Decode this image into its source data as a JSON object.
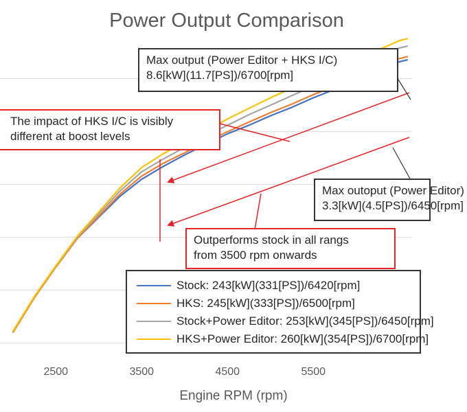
{
  "chart_data": {
    "type": "line",
    "title": "Power Output Comparison",
    "xlabel": "Engine RPM (rpm)",
    "ylabel": "",
    "xlim": [
      1850,
      6650
    ],
    "ylim": [
      -8,
      292
    ],
    "x_ticks": [
      "2500",
      "3500",
      "4500",
      "5500"
    ],
    "x_tick_values": [
      2500,
      3500,
      4500,
      5500
    ],
    "grid": true,
    "legend_position": "bottom-right",
    "series": [
      {
        "name": "Stock: 243[kW](331[PS])/6420[rpm]",
        "color": "#4472c4",
        "x": [
          2000,
          2250,
          2500,
          2750,
          3000,
          3250,
          3500,
          3750,
          4000,
          4250,
          4500,
          4750,
          5000,
          5250,
          5500,
          5750,
          6000,
          6250,
          6500,
          6600
        ],
        "y": [
          10,
          43,
          72,
          99,
          119,
          139,
          155,
          167,
          178,
          188,
          198,
          206,
          215,
          223,
          232,
          240,
          249,
          258,
          266,
          268
        ]
      },
      {
        "name": "HKS: 245[kW](333[PS])/6500[rpm]",
        "color": "#ed7d31",
        "x": [
          2000,
          2250,
          2500,
          2750,
          3000,
          3250,
          3500,
          3750,
          4000,
          4250,
          4500,
          4750,
          5000,
          5250,
          5500,
          5750,
          6000,
          6250,
          6500,
          6600
        ],
        "y": [
          10,
          43,
          72,
          99,
          120,
          141,
          158,
          170,
          180,
          190,
          200,
          209,
          218,
          226,
          235,
          243,
          252,
          260,
          269,
          271
        ]
      },
      {
        "name": "Stock+Power Editor: 253[kW](345[PS])/6450[rpm]",
        "color": "#a5a5a5",
        "x": [
          2000,
          2250,
          2500,
          2750,
          3000,
          3250,
          3500,
          3750,
          4000,
          4250,
          4500,
          4750,
          5000,
          5250,
          5500,
          5750,
          6000,
          6250,
          6500,
          6600
        ],
        "y": [
          11,
          44,
          73,
          100,
          122,
          144,
          162,
          174,
          185,
          196,
          206,
          216,
          225,
          234,
          243,
          253,
          261,
          270,
          279,
          281
        ]
      },
      {
        "name": "HKS+Power Editor: 260[kW](354[PS])/6700[rpm]",
        "color": "#ffc000",
        "x": [
          2000,
          2250,
          2500,
          2750,
          3000,
          3250,
          3500,
          3750,
          4000,
          4250,
          4500,
          4750,
          5000,
          5250,
          5500,
          5750,
          6000,
          6250,
          6500,
          6600
        ],
        "y": [
          11,
          44,
          73,
          101,
          124,
          147,
          166,
          179,
          190,
          201,
          212,
          222,
          232,
          241,
          250,
          260,
          268,
          277,
          286,
          288
        ]
      }
    ],
    "annotations": [
      {
        "id": "max_output",
        "lines": [
          "Max output (Power Editor + HKS I/C)",
          "8.6[kW](11.7[PS])/6700[rpm]"
        ]
      },
      {
        "id": "impact",
        "lines": [
          "The impact of HKS I/C is visibly",
          "different at boost levels"
        ]
      },
      {
        "id": "max_outoput",
        "lines": [
          "Max outoput (Power Editor)",
          "3.3[kW](4.5[PS])/6450[rpm]"
        ]
      },
      {
        "id": "outperforms",
        "lines": [
          "Outperforms stock in all rangs",
          "from 3500 rpm onwards"
        ]
      }
    ]
  }
}
